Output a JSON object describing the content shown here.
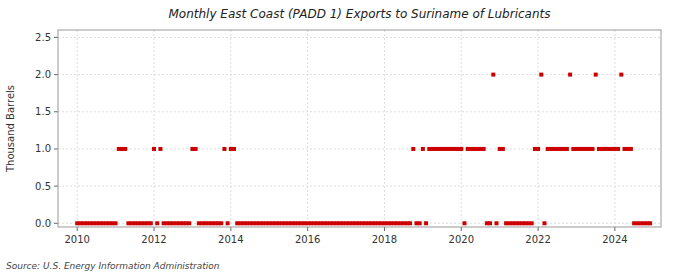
{
  "chart_data": {
    "type": "scatter",
    "title": "Monthly East Coast (PADD 1) Exports to Suriname of Lubricants",
    "y_label": "Thousand Barrels",
    "source": "Source: U.S. Energy Information Administration",
    "color": "#cc0000",
    "marker": "square",
    "grid": true,
    "xlim": [
      2009.5,
      2025.2
    ],
    "ylim": [
      -0.05,
      2.6
    ],
    "xticks": [
      2010,
      2012,
      2014,
      2016,
      2018,
      2020,
      2022,
      2024
    ],
    "yticks": [
      {
        "value": 0.0,
        "label": "0.0"
      },
      0.5,
      {
        "value": 1.0,
        "label": "1.0"
      },
      1.5,
      {
        "value": 2.0,
        "label": "2.0"
      },
      2.5
    ],
    "x": [
      2010,
      2010.0833333333,
      2010.1666666667,
      2010.25,
      2010.3333333333,
      2010.4166666667,
      2010.5,
      2010.5833333333,
      2010.6666666667,
      2010.75,
      2010.8333333333,
      2010.9166666667,
      2011,
      2011.0833333333,
      2011.1666666667,
      2011.25,
      2011.3333333333,
      2011.4166666667,
      2011.5,
      2011.5833333333,
      2011.6666666667,
      2011.75,
      2011.8333333333,
      2011.9166666667,
      2012,
      2012.0833333333,
      2012.1666666667,
      2012.25,
      2012.3333333333,
      2012.4166666667,
      2012.5,
      2012.5833333333,
      2012.6666666667,
      2012.75,
      2012.8333333333,
      2012.9166666667,
      2013,
      2013.0833333333,
      2013.1666666667,
      2013.25,
      2013.3333333333,
      2013.4166666667,
      2013.5,
      2013.5833333333,
      2013.6666666667,
      2013.75,
      2013.8333333333,
      2013.9166666667,
      2014,
      2014.0833333333,
      2014.1666666667,
      2014.25,
      2014.3333333333,
      2014.4166666667,
      2014.5,
      2014.5833333333,
      2014.6666666667,
      2014.75,
      2014.8333333333,
      2014.9166666667,
      2015,
      2015.0833333333,
      2015.1666666667,
      2015.25,
      2015.3333333333,
      2015.4166666667,
      2015.5,
      2015.5833333333,
      2015.6666666667,
      2015.75,
      2015.8333333333,
      2015.9166666667,
      2016,
      2016.0833333333,
      2016.1666666667,
      2016.25,
      2016.3333333333,
      2016.4166666667,
      2016.5,
      2016.5833333333,
      2016.6666666667,
      2016.75,
      2016.8333333333,
      2016.9166666667,
      2017,
      2017.0833333333,
      2017.1666666667,
      2017.25,
      2017.3333333333,
      2017.4166666667,
      2017.5,
      2017.5833333333,
      2017.6666666667,
      2017.75,
      2017.8333333333,
      2017.9166666667,
      2018,
      2018.0833333333,
      2018.1666666667,
      2018.25,
      2018.3333333333,
      2018.4166666667,
      2018.5,
      2018.5833333333,
      2018.6666666667,
      2018.75,
      2018.8333333333,
      2018.9166666667,
      2019,
      2019.0833333333,
      2019.1666666667,
      2019.25,
      2019.3333333333,
      2019.4166666667,
      2019.5,
      2019.5833333333,
      2019.6666666667,
      2019.75,
      2019.8333333333,
      2019.9166666667,
      2020,
      2020.0833333333,
      2020.1666666667,
      2020.25,
      2020.3333333333,
      2020.4166666667,
      2020.5,
      2020.5833333333,
      2020.6666666667,
      2020.75,
      2020.8333333333,
      2020.9166666667,
      2021,
      2021.0833333333,
      2021.1666666667,
      2021.25,
      2021.3333333333,
      2021.4166666667,
      2021.5,
      2021.5833333333,
      2021.6666666667,
      2021.75,
      2021.8333333333,
      2021.9166666667,
      2022,
      2022.0833333333,
      2022.1666666667,
      2022.25,
      2022.3333333333,
      2022.4166666667,
      2022.5,
      2022.5833333333,
      2022.6666666667,
      2022.75,
      2022.8333333333,
      2022.9166666667,
      2023,
      2023.0833333333,
      2023.1666666667,
      2023.25,
      2023.3333333333,
      2023.4166666667,
      2023.5,
      2023.5833333333,
      2023.6666666667,
      2023.75,
      2023.8333333333,
      2023.9166666667,
      2024,
      2024.0833333333,
      2024.1666666667,
      2024.25,
      2024.3333333333,
      2024.4166666667,
      2024.5,
      2024.5833333333,
      2024.6666666667,
      2024.75,
      2024.8333333333,
      2024.9166666667
    ],
    "values": [
      0,
      0,
      0,
      0,
      0,
      0,
      0,
      0,
      0,
      0,
      0,
      0,
      0,
      1,
      1,
      1,
      0,
      0,
      0,
      0,
      0,
      0,
      0,
      0,
      1,
      0,
      1,
      0,
      0,
      0,
      0,
      0,
      0,
      0,
      0,
      0,
      1,
      1,
      0,
      0,
      0,
      0,
      0,
      0,
      0,
      0,
      1,
      0,
      1,
      1,
      0,
      0,
      0,
      0,
      0,
      0,
      0,
      0,
      0,
      0,
      0,
      0,
      0,
      0,
      0,
      0,
      0,
      0,
      0,
      0,
      0,
      0,
      0,
      0,
      0,
      0,
      0,
      0,
      0,
      0,
      0,
      0,
      0,
      0,
      0,
      0,
      0,
      0,
      0,
      0,
      0,
      0,
      0,
      0,
      0,
      0,
      0,
      0,
      0,
      0,
      0,
      0,
      0,
      0,
      0,
      1,
      0,
      0,
      1,
      0,
      1,
      1,
      1,
      1,
      1,
      1,
      1,
      1,
      1,
      1,
      1,
      0,
      1,
      1,
      1,
      1,
      1,
      1,
      0,
      0,
      2,
      0,
      1,
      1,
      0,
      0,
      0,
      0,
      0,
      0,
      0,
      0,
      0,
      1,
      1,
      2,
      0,
      1,
      1,
      1,
      1,
      1,
      1,
      1,
      2,
      1,
      1,
      1,
      1,
      1,
      1,
      1,
      2,
      1,
      1,
      1,
      1,
      1,
      1,
      1,
      2,
      1,
      1,
      1,
      0,
      0,
      0,
      0,
      0,
      0
    ]
  }
}
